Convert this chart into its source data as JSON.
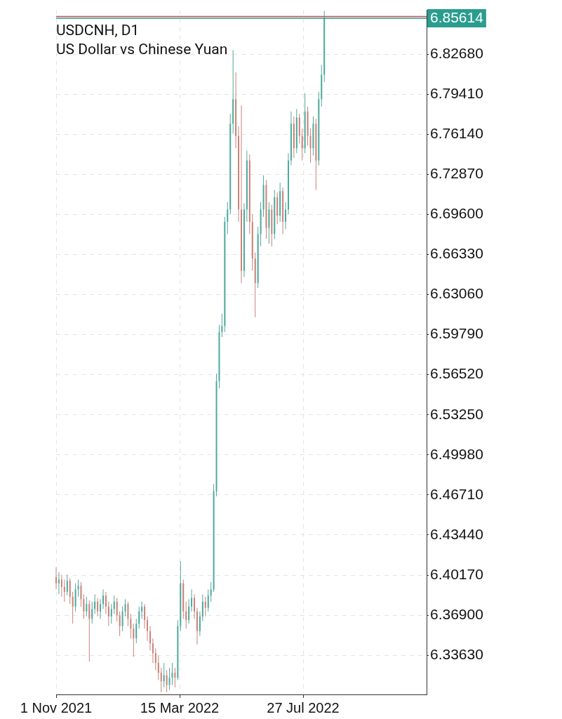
{
  "chart_data": {
    "type": "candlestick",
    "title": "USDCNH, D1",
    "subtitle": "US Dollar vs Chinese Yuan",
    "x": [
      "2021-11-01",
      "2021-11-04",
      "2021-11-07",
      "2021-11-10",
      "2021-11-13",
      "2021-11-16",
      "2021-11-19",
      "2021-11-22",
      "2021-11-25",
      "2021-11-28",
      "2021-12-01",
      "2021-12-04",
      "2021-12-07",
      "2021-12-10",
      "2021-12-13",
      "2021-12-16",
      "2021-12-19",
      "2021-12-22",
      "2021-12-25",
      "2021-12-28",
      "2021-12-31",
      "2022-01-03",
      "2022-01-06",
      "2022-01-09",
      "2022-01-12",
      "2022-01-15",
      "2022-01-18",
      "2022-01-21",
      "2022-01-24",
      "2022-01-27",
      "2022-01-30",
      "2022-02-02",
      "2022-02-05",
      "2022-02-08",
      "2022-02-11",
      "2022-02-14",
      "2022-02-17",
      "2022-02-20",
      "2022-02-23",
      "2022-02-26",
      "2022-03-01",
      "2022-03-04",
      "2022-03-07",
      "2022-03-10",
      "2022-03-13",
      "2022-03-16",
      "2022-03-19",
      "2022-03-22",
      "2022-03-25",
      "2022-03-28",
      "2022-03-31",
      "2022-04-03",
      "2022-04-06",
      "2022-04-09",
      "2022-04-12",
      "2022-04-15",
      "2022-04-18",
      "2022-04-21",
      "2022-04-24",
      "2022-04-27",
      "2022-04-30",
      "2022-05-03",
      "2022-05-06",
      "2022-05-09",
      "2022-05-12",
      "2022-05-15",
      "2022-05-18",
      "2022-05-21",
      "2022-05-24",
      "2022-05-27",
      "2022-05-30",
      "2022-06-02",
      "2022-06-05",
      "2022-06-08",
      "2022-06-11",
      "2022-06-14",
      "2022-06-17",
      "2022-06-20",
      "2022-06-23",
      "2022-06-26",
      "2022-06-29",
      "2022-07-02",
      "2022-07-05",
      "2022-07-08",
      "2022-07-11",
      "2022-07-14",
      "2022-07-17",
      "2022-07-20",
      "2022-07-23",
      "2022-07-26",
      "2022-07-29",
      "2022-08-01",
      "2022-08-04",
      "2022-08-07",
      "2022-08-10",
      "2022-08-13",
      "2022-08-16",
      "2022-08-19"
    ],
    "ohlc": [
      [
        6.4,
        6.408,
        6.39,
        6.395
      ],
      [
        6.395,
        6.404,
        6.386,
        6.398
      ],
      [
        6.398,
        6.402,
        6.384,
        6.392
      ],
      [
        6.392,
        6.398,
        6.38,
        6.388
      ],
      [
        6.388,
        6.402,
        6.385,
        6.397
      ],
      [
        6.397,
        6.399,
        6.378,
        6.384
      ],
      [
        6.384,
        6.388,
        6.362,
        6.376
      ],
      [
        6.376,
        6.395,
        6.372,
        6.39
      ],
      [
        6.39,
        6.398,
        6.384,
        6.393
      ],
      [
        6.393,
        6.396,
        6.376,
        6.382
      ],
      [
        6.382,
        6.386,
        6.366,
        6.372
      ],
      [
        6.372,
        6.384,
        6.368,
        6.378
      ],
      [
        6.378,
        6.381,
        6.331,
        6.366
      ],
      [
        6.366,
        6.38,
        6.362,
        6.374
      ],
      [
        6.374,
        6.386,
        6.37,
        6.38
      ],
      [
        6.38,
        6.383,
        6.368,
        6.372
      ],
      [
        6.372,
        6.382,
        6.366,
        6.378
      ],
      [
        6.378,
        6.39,
        6.374,
        6.385
      ],
      [
        6.385,
        6.388,
        6.37,
        6.376
      ],
      [
        6.376,
        6.38,
        6.36,
        6.368
      ],
      [
        6.368,
        6.378,
        6.362,
        6.374
      ],
      [
        6.374,
        6.385,
        6.37,
        6.38
      ],
      [
        6.38,
        6.383,
        6.364,
        6.369
      ],
      [
        6.369,
        6.372,
        6.352,
        6.36
      ],
      [
        6.36,
        6.376,
        6.356,
        6.372
      ],
      [
        6.372,
        6.382,
        6.368,
        6.378
      ],
      [
        6.378,
        6.38,
        6.36,
        6.366
      ],
      [
        6.366,
        6.37,
        6.35,
        6.358
      ],
      [
        6.358,
        6.362,
        6.335,
        6.35
      ],
      [
        6.35,
        6.366,
        6.346,
        6.362
      ],
      [
        6.362,
        6.376,
        6.358,
        6.372
      ],
      [
        6.372,
        6.38,
        6.366,
        6.376
      ],
      [
        6.376,
        6.378,
        6.358,
        6.365
      ],
      [
        6.365,
        6.368,
        6.348,
        6.356
      ],
      [
        6.356,
        6.36,
        6.34,
        6.346
      ],
      [
        6.346,
        6.35,
        6.33,
        6.338
      ],
      [
        6.338,
        6.342,
        6.324,
        6.33
      ],
      [
        6.33,
        6.336,
        6.316,
        6.322
      ],
      [
        6.322,
        6.326,
        6.306,
        6.315
      ],
      [
        6.315,
        6.33,
        6.31,
        6.32
      ],
      [
        6.32,
        6.324,
        6.306,
        6.312
      ],
      [
        6.312,
        6.326,
        6.308,
        6.318
      ],
      [
        6.318,
        6.33,
        6.312,
        6.322
      ],
      [
        6.322,
        6.326,
        6.31,
        6.318
      ],
      [
        6.318,
        6.365,
        6.316,
        6.36
      ],
      [
        6.36,
        6.413,
        6.356,
        6.395
      ],
      [
        6.395,
        6.398,
        6.366,
        6.372
      ],
      [
        6.372,
        6.38,
        6.358,
        6.365
      ],
      [
        6.365,
        6.382,
        6.362,
        6.376
      ],
      [
        6.376,
        6.39,
        6.372,
        6.383
      ],
      [
        6.383,
        6.386,
        6.366,
        6.372
      ],
      [
        6.372,
        6.375,
        6.345,
        6.356
      ],
      [
        6.356,
        6.372,
        6.352,
        6.368
      ],
      [
        6.368,
        6.386,
        6.364,
        6.38
      ],
      [
        6.38,
        6.384,
        6.368,
        6.375
      ],
      [
        6.375,
        6.39,
        6.372,
        6.385
      ],
      [
        6.385,
        6.396,
        6.38,
        6.39
      ],
      [
        6.39,
        6.476,
        6.388,
        6.47
      ],
      [
        6.47,
        6.566,
        6.466,
        6.56
      ],
      [
        6.56,
        6.606,
        6.554,
        6.6
      ],
      [
        6.6,
        6.615,
        6.596,
        6.605
      ],
      [
        6.605,
        6.694,
        6.6,
        6.69
      ],
      [
        6.69,
        6.706,
        6.68,
        6.7
      ],
      [
        6.7,
        6.778,
        6.696,
        6.77
      ],
      [
        6.77,
        6.83,
        6.762,
        6.79
      ],
      [
        6.79,
        6.812,
        6.75,
        6.76
      ],
      [
        6.76,
        6.768,
        6.69,
        6.7
      ],
      [
        6.7,
        6.785,
        6.64,
        6.65
      ],
      [
        6.65,
        6.705,
        6.645,
        6.7
      ],
      [
        6.7,
        6.748,
        6.69,
        6.74
      ],
      [
        6.74,
        6.745,
        6.68,
        6.69
      ],
      [
        6.69,
        6.696,
        6.65,
        6.66
      ],
      [
        6.66,
        6.665,
        6.612,
        6.64
      ],
      [
        6.64,
        6.686,
        6.636,
        6.68
      ],
      [
        6.68,
        6.706,
        6.67,
        6.7
      ],
      [
        6.7,
        6.728,
        6.694,
        6.72
      ],
      [
        6.72,
        6.724,
        6.676,
        6.685
      ],
      [
        6.685,
        6.706,
        6.672,
        6.7
      ],
      [
        6.7,
        6.704,
        6.67,
        6.68
      ],
      [
        6.68,
        6.716,
        6.676,
        6.71
      ],
      [
        6.71,
        6.714,
        6.688,
        6.695
      ],
      [
        6.695,
        6.722,
        6.69,
        6.715
      ],
      [
        6.715,
        6.718,
        6.68,
        6.69
      ],
      [
        6.69,
        6.706,
        6.684,
        6.7
      ],
      [
        6.7,
        6.746,
        6.696,
        6.74
      ],
      [
        6.74,
        6.78,
        6.736,
        6.77
      ],
      [
        6.77,
        6.776,
        6.742,
        6.75
      ],
      [
        6.75,
        6.782,
        6.746,
        6.775
      ],
      [
        6.775,
        6.778,
        6.754,
        6.76
      ],
      [
        6.76,
        6.766,
        6.74,
        6.75
      ],
      [
        6.75,
        6.795,
        6.746,
        6.78
      ],
      [
        6.78,
        6.784,
        6.752,
        6.76
      ],
      [
        6.76,
        6.766,
        6.738,
        6.75
      ],
      [
        6.75,
        6.776,
        6.744,
        6.77
      ],
      [
        6.77,
        6.774,
        6.716,
        6.74
      ],
      [
        6.74,
        6.796,
        6.736,
        6.79
      ],
      [
        6.79,
        6.818,
        6.784,
        6.81
      ],
      [
        6.81,
        6.862,
        6.804,
        6.856
      ]
    ],
    "colors": [
      "#c98278",
      "#4ea99e",
      "#c98278",
      "#c98278",
      "#4ea99e",
      "#c98278",
      "#c98278",
      "#4ea99e",
      "#4ea99e",
      "#c98278",
      "#c98278",
      "#4ea99e",
      "#c98278",
      "#4ea99e",
      "#4ea99e",
      "#c98278",
      "#4ea99e",
      "#4ea99e",
      "#c98278",
      "#c98278",
      "#4ea99e",
      "#4ea99e",
      "#c98278",
      "#c98278",
      "#4ea99e",
      "#4ea99e",
      "#c98278",
      "#c98278",
      "#c98278",
      "#4ea99e",
      "#4ea99e",
      "#4ea99e",
      "#c98278",
      "#c98278",
      "#c98278",
      "#c98278",
      "#c98278",
      "#c98278",
      "#c98278",
      "#4ea99e",
      "#c98278",
      "#4ea99e",
      "#4ea99e",
      "#c98278",
      "#4ea99e",
      "#4ea99e",
      "#c98278",
      "#c98278",
      "#4ea99e",
      "#4ea99e",
      "#c98278",
      "#c98278",
      "#4ea99e",
      "#4ea99e",
      "#c98278",
      "#4ea99e",
      "#4ea99e",
      "#4ea99e",
      "#4ea99e",
      "#4ea99e",
      "#4ea99e",
      "#4ea99e",
      "#4ea99e",
      "#4ea99e",
      "#4ea99e",
      "#c98278",
      "#c98278",
      "#c98278",
      "#4ea99e",
      "#4ea99e",
      "#c98278",
      "#c98278",
      "#c98278",
      "#4ea99e",
      "#4ea99e",
      "#4ea99e",
      "#c98278",
      "#4ea99e",
      "#c98278",
      "#4ea99e",
      "#c98278",
      "#4ea99e",
      "#c98278",
      "#4ea99e",
      "#4ea99e",
      "#4ea99e",
      "#c98278",
      "#4ea99e",
      "#c98278",
      "#c98278",
      "#4ea99e",
      "#c98278",
      "#c98278",
      "#4ea99e",
      "#c98278",
      "#4ea99e",
      "#4ea99e",
      "#4ea99e"
    ],
    "xlim": [
      "2021-11-01",
      "2022-12-08"
    ],
    "xticks": [
      {
        "value": "2021-11-01",
        "label": "1 Nov 2021"
      },
      {
        "value": "2022-03-15",
        "label": "15 Mar 2022"
      },
      {
        "value": "2022-07-27",
        "label": "27 Jul 2022"
      }
    ],
    "ylim": [
      6.3043,
      6.8626
    ],
    "yticks": [
      {
        "value": 6.3363,
        "label": "6.33630"
      },
      {
        "value": 6.369,
        "label": "6.36900"
      },
      {
        "value": 6.4017,
        "label": "6.40170"
      },
      {
        "value": 6.4344,
        "label": "6.43440"
      },
      {
        "value": 6.4671,
        "label": "6.46710"
      },
      {
        "value": 6.4998,
        "label": "6.49980"
      },
      {
        "value": 6.5325,
        "label": "6.53250"
      },
      {
        "value": 6.5652,
        "label": "6.56520"
      },
      {
        "value": 6.5979,
        "label": "6.59790"
      },
      {
        "value": 6.6306,
        "label": "6.63060"
      },
      {
        "value": 6.6633,
        "label": "6.66330"
      },
      {
        "value": 6.696,
        "label": "6.69600"
      },
      {
        "value": 6.7287,
        "label": "6.72870"
      },
      {
        "value": 6.7614,
        "label": "6.76140"
      },
      {
        "value": 6.7941,
        "label": "6.79410"
      },
      {
        "value": 6.8268,
        "label": "6.82680"
      }
    ],
    "ref_lines": [
      {
        "axis": "y",
        "value": 6.8575,
        "label": null,
        "color": "#c0504d"
      },
      {
        "axis": "y",
        "value": 6.85614,
        "label": "6.85614",
        "color": "#2a9d8f"
      }
    ],
    "grid": true,
    "legend": false
  }
}
